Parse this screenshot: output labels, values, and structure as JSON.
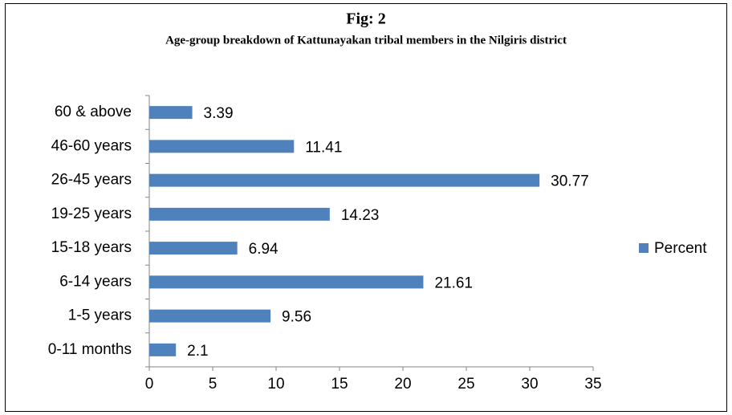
{
  "chart_data": {
    "type": "hbar",
    "title": "Fig: 2",
    "subtitle": "Age-group breakdown of Kattunayakan tribal members in the Nilgiris district",
    "categories": [
      "0-11 months",
      "1-5 years",
      "6-14 years",
      "15-18 years",
      "19-25 years",
      "26-45 years",
      "46-60 years",
      "60 & above"
    ],
    "series": [
      {
        "name": "Percent",
        "color": "#4f81bd",
        "values": [
          2.1,
          9.56,
          21.61,
          6.94,
          14.23,
          30.77,
          11.41,
          3.39
        ]
      }
    ],
    "xlim": [
      0,
      35
    ],
    "xticks": [
      0,
      5,
      10,
      15,
      20,
      25,
      30,
      35
    ],
    "grid": false,
    "legend": "right"
  }
}
